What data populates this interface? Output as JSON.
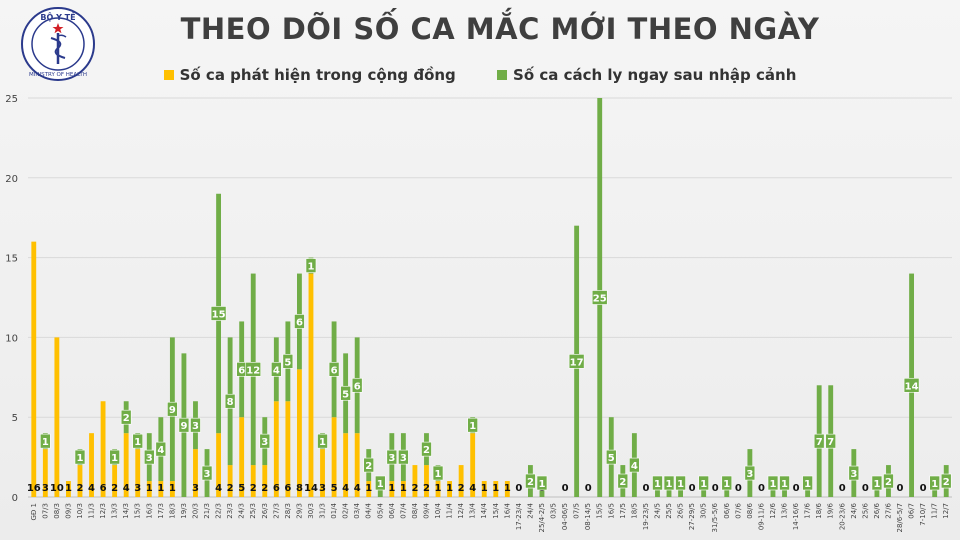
{
  "header": {
    "title": "THEO DÕI SỐ CA MẮC MỚI THEO NGÀY",
    "logo": {
      "top_text": "BỘ Y TẾ",
      "bottom_text": "MINISTRY OF HEALTH",
      "icon": "caduceus-icon"
    }
  },
  "colors": {
    "community": "#FFC000",
    "quarantine": "#70AD47",
    "label_bg": "#70AD47"
  },
  "chart_data": {
    "type": "bar",
    "stacked": true,
    "title": "THEO DÕI SỐ CA MẮC MỚI THEO NGÀY",
    "legend_position": "top",
    "ylim": [
      0,
      25
    ],
    "yticks": [
      0,
      5,
      10,
      15,
      20,
      25
    ],
    "grid": true,
    "categories": [
      "GĐ 1",
      "07/3",
      "08/3",
      "09/3",
      "10/3",
      "11/3",
      "12/3",
      "13/3",
      "14/3",
      "15/3",
      "16/3",
      "17/3",
      "18/3",
      "19/3",
      "20/3",
      "21/3",
      "22/3",
      "23/3",
      "24/3",
      "25/3",
      "26/3",
      "27/3",
      "28/3",
      "29/3",
      "30/3",
      "31/3",
      "01/4",
      "02/4",
      "03/4",
      "04/4",
      "05/4",
      "06/4",
      "07/4",
      "08/4",
      "09/4",
      "10/4",
      "11/4",
      "12/4",
      "13/4",
      "14/4",
      "15/4",
      "16/4",
      "17-23/4",
      "24/4",
      "25/4-2/5",
      "03/5",
      "04-06/5",
      "07/5",
      "08-14/5",
      "15/5",
      "16/5",
      "17/5",
      "18/5",
      "19-23/5",
      "24/5",
      "25/5",
      "26/5",
      "27-29/5",
      "30/5",
      "31/5-5/6",
      "06/6",
      "07/6",
      "08/6",
      "09-11/6",
      "12/6",
      "13/6",
      "14-16/6",
      "17/6",
      "18/6",
      "19/6",
      "20-23/6",
      "24/6",
      "25/6",
      "26/6",
      "27/6",
      "28/6-5/7",
      "06/7",
      "7-10/7",
      "11/7",
      "12/7"
    ],
    "series": [
      {
        "name": "Số ca phát hiện trong cộng đồng",
        "color": "#FFC000",
        "values": [
          16,
          3,
          10,
          1,
          2,
          4,
          6,
          2,
          4,
          3,
          1,
          1,
          1,
          0,
          3,
          0,
          4,
          2,
          5,
          2,
          2,
          6,
          6,
          8,
          14,
          3,
          5,
          4,
          4,
          1,
          0,
          1,
          1,
          2,
          2,
          1,
          1,
          2,
          4,
          1,
          1,
          1,
          0,
          0,
          0,
          0,
          0,
          0,
          0,
          0,
          0,
          0,
          0,
          0,
          0,
          0,
          0,
          0,
          0,
          0,
          0,
          0,
          0,
          0,
          0,
          0,
          0,
          0,
          0,
          0,
          0,
          0,
          0,
          0,
          0,
          0,
          0,
          0,
          0,
          0
        ]
      },
      {
        "name": "Số ca cách ly ngay sau nhập cảnh",
        "color": "#70AD47",
        "values": [
          0,
          1,
          0,
          0,
          1,
          0,
          0,
          1,
          2,
          1,
          3,
          4,
          9,
          9,
          3,
          3,
          15,
          8,
          6,
          12,
          3,
          4,
          5,
          6,
          1,
          1,
          6,
          5,
          6,
          2,
          1,
          3,
          3,
          0,
          2,
          1,
          0,
          0,
          1,
          0,
          0,
          0,
          0,
          2,
          1,
          0,
          0,
          17,
          0,
          25,
          5,
          2,
          4,
          0,
          1,
          1,
          1,
          0,
          1,
          0,
          1,
          0,
          3,
          0,
          1,
          1,
          0,
          1,
          7,
          7,
          0,
          3,
          0,
          1,
          2,
          0,
          14,
          0,
          1,
          2
        ]
      }
    ],
    "community_labels": [
      "16",
      "3",
      "10",
      "1",
      "2",
      "4",
      "6",
      "2",
      "4",
      "3",
      "1",
      "1",
      "1",
      "",
      "3",
      "",
      "4",
      "2",
      "5",
      "2",
      "2",
      "6",
      "6",
      "8",
      "14",
      "3",
      "5",
      "4",
      "4",
      "1",
      "",
      "1",
      "1",
      "2",
      "2",
      "1",
      "1",
      "2",
      "4",
      "1",
      "1",
      "1",
      "0",
      "",
      "0",
      "",
      "0",
      "",
      "0",
      "",
      "",
      "",
      "",
      "0",
      "",
      "",
      "",
      "0",
      "",
      "0",
      "",
      "0",
      "",
      "0",
      "",
      "",
      "0",
      "",
      "",
      "",
      "0",
      "",
      "0",
      "",
      "",
      "0",
      "",
      "0",
      "",
      ""
    ],
    "quarantine_labels": [
      "",
      "1",
      "",
      "",
      "1",
      "",
      "",
      "1",
      "2",
      "1",
      "3",
      "4",
      "9",
      "9",
      "3",
      "3",
      "15",
      "8",
      "6",
      "12",
      "3",
      "4",
      "5",
      "6",
      "1",
      "1",
      "6",
      "5",
      "6",
      "2",
      "1",
      "3",
      "3",
      "",
      "2",
      "1",
      "",
      "",
      "1",
      "",
      "",
      "",
      "",
      "2",
      "1",
      "",
      "",
      "17",
      "",
      "25",
      "5",
      "2",
      "4",
      "",
      "1",
      "1",
      "1",
      "",
      "1",
      "",
      "1",
      "",
      "3",
      "",
      "1",
      "1",
      "",
      "1",
      "7",
      "7",
      "",
      "3",
      "",
      "1",
      "2",
      "",
      "14",
      "",
      "1",
      "2"
    ]
  }
}
